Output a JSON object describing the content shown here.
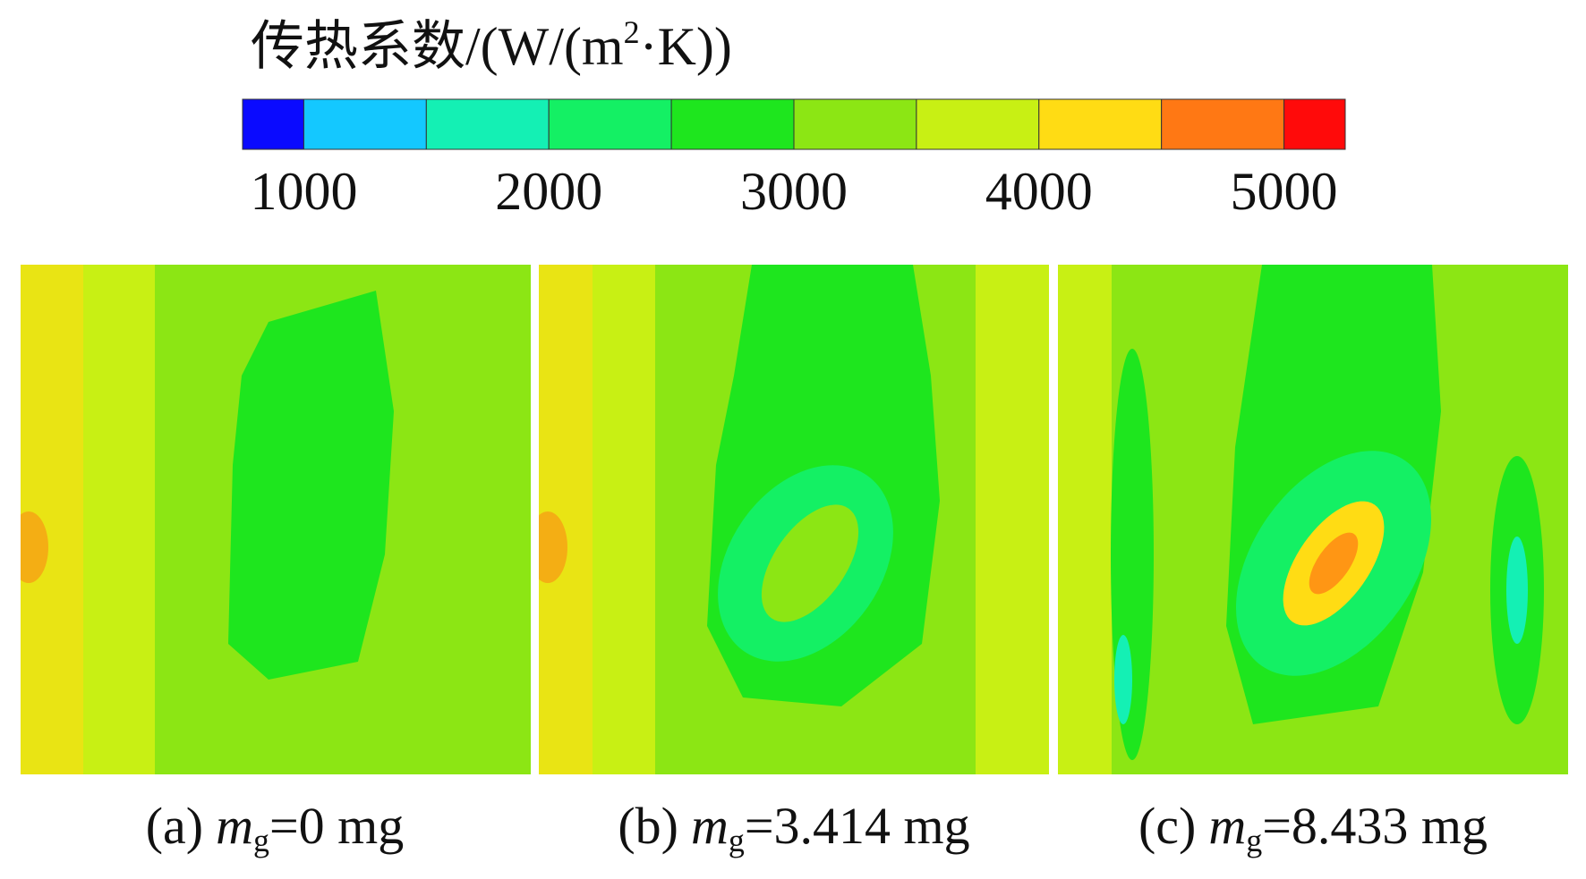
{
  "chart_data": {
    "type": "contour",
    "title": {
      "main": "传热系数/(W/(m",
      "sup": "2",
      "tail": "·K))"
    },
    "levels": [
      750,
      1000,
      1500,
      2000,
      2500,
      3000,
      3500,
      4000,
      4500,
      5000,
      5250
    ],
    "colors": [
      "#0a0aff",
      "#14c8ff",
      "#14f0b4",
      "#14f064",
      "#1ee61e",
      "#8ce614",
      "#c8f014",
      "#ffdc14",
      "#ff7814",
      "#ff0a0a"
    ],
    "ticks": [
      1000,
      2000,
      3000,
      4000,
      5000
    ],
    "panels": [
      {
        "label": "(a)",
        "var": "m",
        "sub": "g",
        "value": "=0 mg"
      },
      {
        "label": "(b)",
        "var": "m",
        "sub": "g",
        "value": "=3.414 mg"
      },
      {
        "label": "(c)",
        "var": "m",
        "sub": "g",
        "value": "=8.433 mg"
      }
    ]
  }
}
